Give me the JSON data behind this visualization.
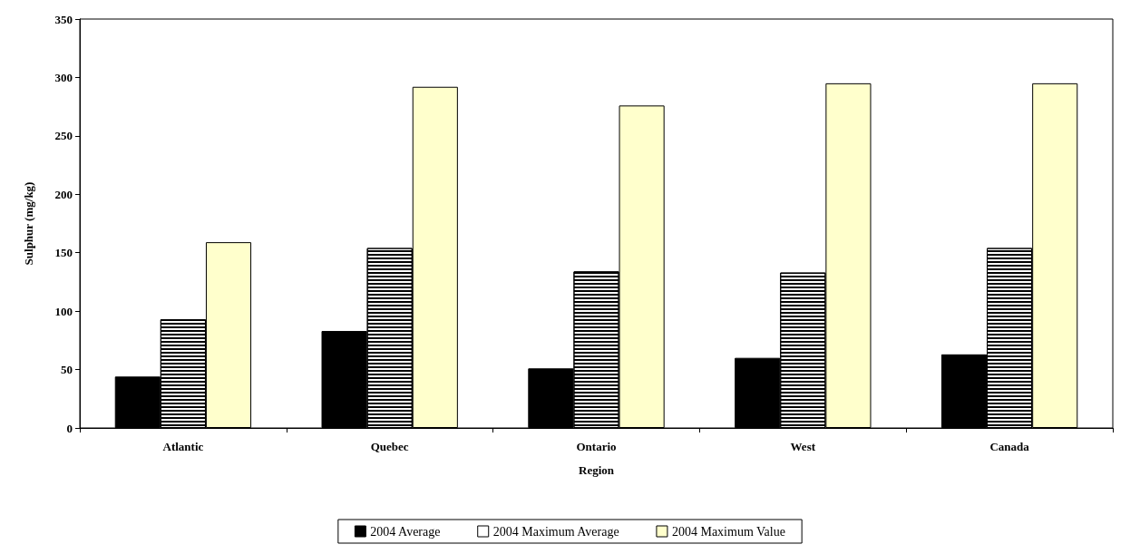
{
  "chart_data": {
    "type": "bar",
    "xlabel": "Region",
    "ylabel": "Sulphur (mg/kg)",
    "categories": [
      "Atlantic",
      "Quebec",
      "Ontario",
      "West",
      "Canada"
    ],
    "series": [
      {
        "name": "2004 Average",
        "color": "#000000",
        "values": [
          44,
          83,
          51,
          60,
          63
        ]
      },
      {
        "name": "2004 Maximum Average",
        "color": "#ffffff",
        "values": [
          93,
          154,
          134,
          133,
          154
        ]
      },
      {
        "name": "2004 Maximum Value",
        "color": "#ffffcc",
        "values": [
          159,
          292,
          276,
          295,
          295
        ]
      }
    ],
    "ylim": [
      0,
      350
    ],
    "yticks": [
      0,
      50,
      100,
      150,
      200,
      250,
      300,
      350
    ],
    "grid": false,
    "legend": "bottom"
  }
}
